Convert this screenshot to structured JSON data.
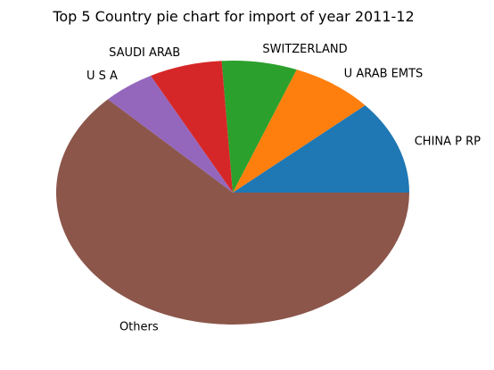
{
  "chart_data": {
    "type": "pie",
    "title": "Top 5 Country pie chart for import of year 2011-12",
    "start_angle_deg": 0,
    "direction": "counterclockwise",
    "slices": [
      {
        "label": "CHINA P RP",
        "value": 11.5,
        "color": "#1f77b4"
      },
      {
        "label": "U ARAB EMTS",
        "value": 7.6,
        "color": "#ff7f0e"
      },
      {
        "label": "SWITZERLAND",
        "value": 6.9,
        "color": "#2ca02c"
      },
      {
        "label": "SAUDI ARAB",
        "value": 6.7,
        "color": "#d62728"
      },
      {
        "label": "U S A",
        "value": 4.8,
        "color": "#9467bd"
      },
      {
        "label": "Others",
        "value": 62.5,
        "color": "#8c564b"
      }
    ]
  }
}
